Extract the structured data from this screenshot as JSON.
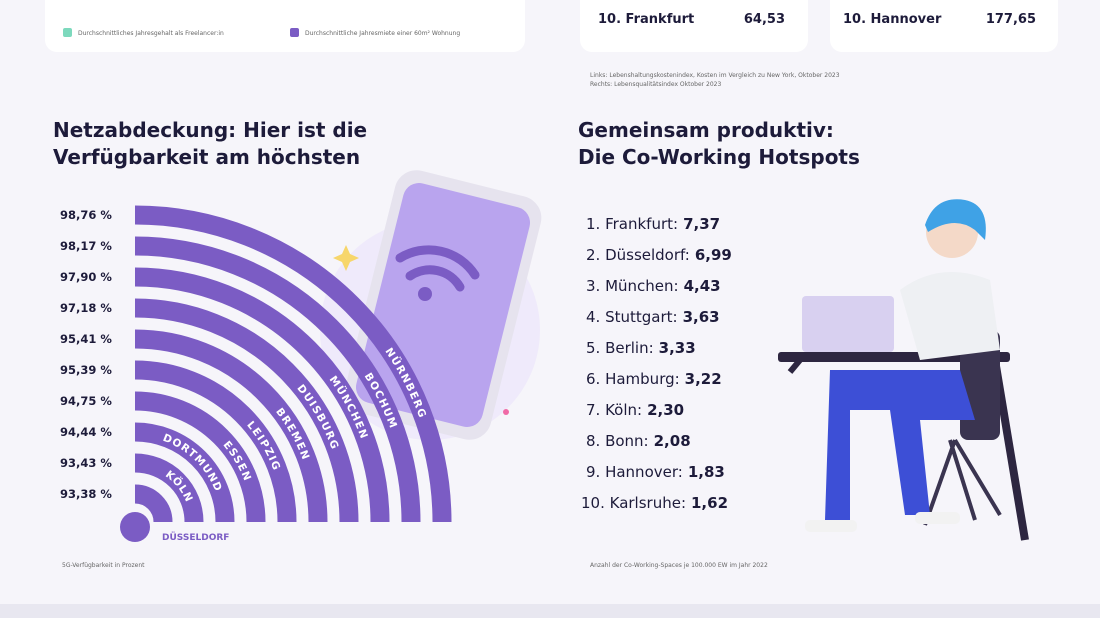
{
  "top": {
    "legend": [
      "Durchschnittliches Jahresgehalt als Freelancer:in",
      "Durchschnittliche Jahresmiete einer 60m² Wohnung"
    ],
    "left_card_rows": [
      {
        "rank": "10. Frankfurt",
        "value": "64,53"
      }
    ],
    "right_card_rows": [
      {
        "rank": "10. Hannover",
        "value": "177,65"
      }
    ],
    "notes": [
      "Links: Lebenshaltungskostenindex, Kosten im Vergleich zu New York, Oktober 2023",
      "Rechts: Lebensqualitätsindex Oktober 2023"
    ]
  },
  "coverage": {
    "title_lines": [
      "Netzabdeckung: Hier ist die",
      "Verfügbarkeit am höchsten"
    ],
    "items": [
      {
        "city": "NÜRNBERG",
        "value": "98,76 %"
      },
      {
        "city": "BOCHUM",
        "value": "98,17 %"
      },
      {
        "city": "MÜNCHEN",
        "value": "97,90 %"
      },
      {
        "city": "DUISBURG",
        "value": "97,18 %"
      },
      {
        "city": "BREMEN",
        "value": "95,41 %"
      },
      {
        "city": "LEIPZIG",
        "value": "95,39 %"
      },
      {
        "city": "ESSEN",
        "value": "94,75 %"
      },
      {
        "city": "DORTMUND",
        "value": "94,44 %"
      },
      {
        "city": "KÖLN",
        "value": "93,43 %"
      },
      {
        "city": "DÜSSELDORF",
        "value": "93,38 %"
      }
    ],
    "note": "5G-Verfügbarkeit in Prozent"
  },
  "coworking": {
    "title_lines": [
      "Gemeinsam produktiv:",
      "Die Co-Working Hotspots"
    ],
    "items": [
      {
        "label": "1. Frankfurt:",
        "value": "7,37"
      },
      {
        "label": "2. Düsseldorf:",
        "value": "6,99"
      },
      {
        "label": "3. München:",
        "value": "4,43"
      },
      {
        "label": "4. Stuttgart:",
        "value": "3,63"
      },
      {
        "label": "5. Berlin:",
        "value": "3,33"
      },
      {
        "label": "6. Hamburg:",
        "value": "3,22"
      },
      {
        "label": "7. Köln:",
        "value": "2,30"
      },
      {
        "label": "8. Bonn:",
        "value": "2,08"
      },
      {
        "label": "9. Hannover:",
        "value": "1,83"
      },
      {
        "label": "10. Karlsruhe:",
        "value": "1,62"
      }
    ],
    "note": "Anzahl der Co-Working-Spaces je 100.000 EW im Jahr 2022"
  }
}
